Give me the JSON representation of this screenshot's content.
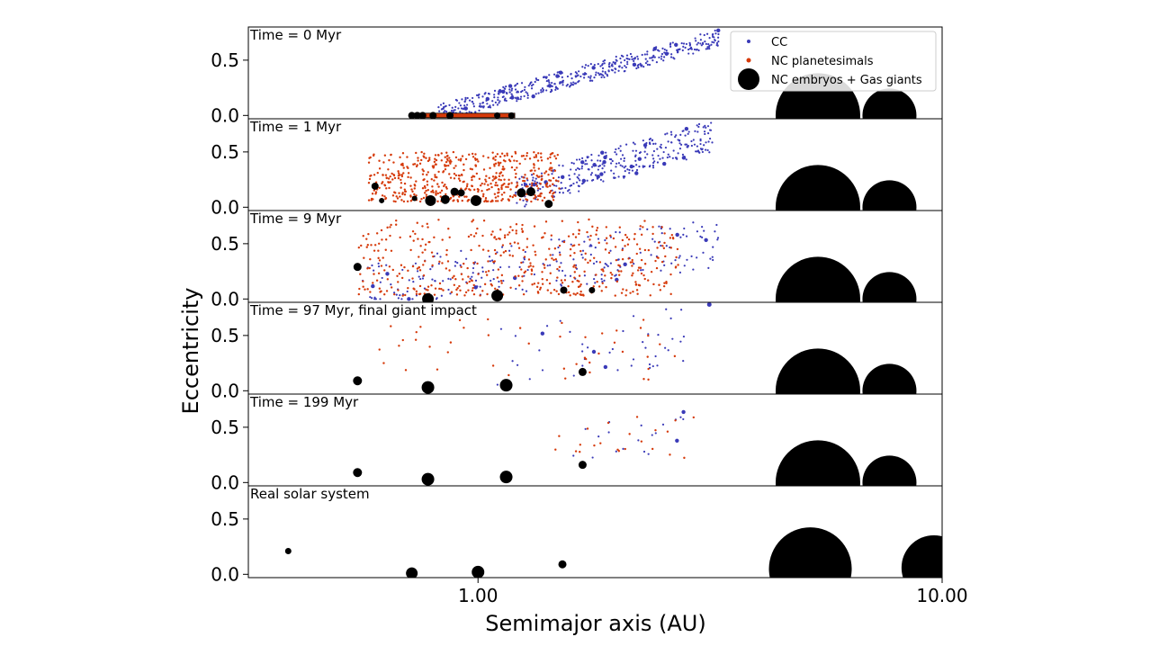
{
  "chart_data": {
    "type": "scatter",
    "xlabel": "Semimajor axis (AU)",
    "ylabel": "Eccentricity",
    "xscale": "log",
    "xlim": [
      0.32,
      10.0
    ],
    "ylim": [
      -0.03,
      0.8
    ],
    "x_ticks": [
      {
        "value": 1.0,
        "label": "1.00"
      },
      {
        "value": 10.0,
        "label": "10.00"
      }
    ],
    "y_ticks": [
      {
        "value": 0.0,
        "label": "0.0"
      },
      {
        "value": 0.5,
        "label": "0.5"
      }
    ],
    "legend": {
      "location": "top-right of first panel",
      "entries": [
        {
          "label": "CC",
          "color": "#3a3ab8"
        },
        {
          "label": "NC planetesimals",
          "color": "#d63a0a"
        },
        {
          "label": "NC embryos + Gas giants",
          "color": "#000000"
        }
      ]
    },
    "colors": {
      "cc": "#3a3ab8",
      "nc": "#d63a0a",
      "embryo": "#000000"
    },
    "panels": [
      {
        "title": "Time = 0 Myr",
        "cc_region": {
          "a_min": 0.82,
          "a_max": 3.3,
          "e_at_min": 0.02,
          "e_at_max": 0.7,
          "spread": 0.16,
          "count": 460
        },
        "nc_band": {
          "a_min": 0.72,
          "a_max": 1.2,
          "e": 0.0
        },
        "embryos": [
          [
            0.72,
            0.0,
            4
          ],
          [
            0.74,
            0.0,
            4
          ],
          [
            0.76,
            0.0,
            4
          ],
          [
            0.8,
            0.0,
            4
          ],
          [
            0.87,
            0.0,
            4
          ],
          [
            1.1,
            0.0,
            3.5
          ],
          [
            1.18,
            0.0,
            3.5
          ]
        ],
        "giants": [
          [
            5.4,
            0.0,
            47
          ],
          [
            7.7,
            0.0,
            30
          ]
        ]
      },
      {
        "title": "Time = 1 Myr",
        "cc_region": {
          "a_min": 1.2,
          "a_max": 3.2,
          "e_at_min": 0.12,
          "e_at_max": 0.65,
          "spread": 0.3,
          "count": 320
        },
        "nc_region": {
          "a_min": 0.58,
          "a_max": 1.5,
          "e_min": 0.05,
          "e_max": 0.5,
          "count": 520
        },
        "embryos": [
          [
            0.6,
            0.19,
            4
          ],
          [
            0.62,
            0.06,
            3
          ],
          [
            0.73,
            0.08,
            3
          ],
          [
            0.79,
            0.06,
            6
          ],
          [
            0.85,
            0.07,
            5
          ],
          [
            0.89,
            0.14,
            4.5
          ],
          [
            0.92,
            0.13,
            4
          ],
          [
            0.99,
            0.06,
            6
          ],
          [
            1.24,
            0.13,
            5
          ],
          [
            1.3,
            0.14,
            5
          ],
          [
            1.42,
            0.03,
            4.5
          ]
        ],
        "giants": [
          [
            5.4,
            0.0,
            47
          ],
          [
            7.7,
            0.0,
            30
          ]
        ]
      },
      {
        "title": "Time = 9 Myr",
        "cc_region": {
          "a_min": 0.55,
          "a_max": 3.3,
          "e_at_min": 0.1,
          "e_at_max": 0.5,
          "spread": 0.45,
          "count": 230
        },
        "nc_region": {
          "a_min": 0.55,
          "a_max": 2.7,
          "e_min": 0.03,
          "e_max": 0.72,
          "count": 470
        },
        "embryos": [
          [
            0.55,
            0.29,
            4.5
          ],
          [
            0.78,
            0.0,
            6.5
          ],
          [
            1.1,
            0.03,
            6.5
          ],
          [
            1.53,
            0.08,
            4
          ],
          [
            1.76,
            0.08,
            3.5
          ]
        ],
        "giants": [
          [
            5.4,
            0.0,
            47
          ],
          [
            7.7,
            0.0,
            30
          ]
        ]
      },
      {
        "title": "Time = 97 Myr, final giant impact",
        "cc_region": {
          "a_min": 1.1,
          "a_max": 2.8,
          "e_at_min": 0.3,
          "e_at_max": 0.5,
          "spread": 0.55,
          "count": 45
        },
        "nc_region": {
          "a_min": 0.6,
          "a_max": 2.8,
          "e_min": 0.1,
          "e_max": 0.65,
          "count": 45
        },
        "embryos": [
          [
            0.55,
            0.09,
            5
          ],
          [
            0.78,
            0.03,
            7
          ],
          [
            1.15,
            0.05,
            7
          ],
          [
            1.68,
            0.17,
            4.5
          ],
          [
            3.15,
            0.78,
            2.5
          ]
        ],
        "giants": [
          [
            5.4,
            0.0,
            47
          ],
          [
            7.7,
            0.0,
            30
          ]
        ]
      },
      {
        "title": "Time = 199 Myr",
        "cc_region": {
          "a_min": 1.6,
          "a_max": 2.8,
          "e_at_min": 0.3,
          "e_at_max": 0.5,
          "spread": 0.4,
          "count": 20
        },
        "nc_region": {
          "a_min": 1.45,
          "a_max": 3.0,
          "e_min": 0.15,
          "e_max": 0.6,
          "count": 22
        },
        "embryos": [
          [
            0.55,
            0.09,
            5
          ],
          [
            0.78,
            0.03,
            7
          ],
          [
            1.15,
            0.05,
            7
          ],
          [
            1.68,
            0.16,
            4.5
          ]
        ],
        "giants": [
          [
            5.4,
            0.0,
            47
          ],
          [
            7.7,
            0.0,
            30
          ]
        ]
      },
      {
        "title": "Real solar system",
        "embryos": [
          [
            0.39,
            0.21,
            3.5
          ],
          [
            0.72,
            0.01,
            6.5
          ],
          [
            1.0,
            0.02,
            7
          ],
          [
            1.52,
            0.09,
            4.5
          ]
        ],
        "giants": [
          [
            5.2,
            0.05,
            46
          ],
          [
            9.6,
            0.06,
            36
          ]
        ]
      }
    ]
  }
}
